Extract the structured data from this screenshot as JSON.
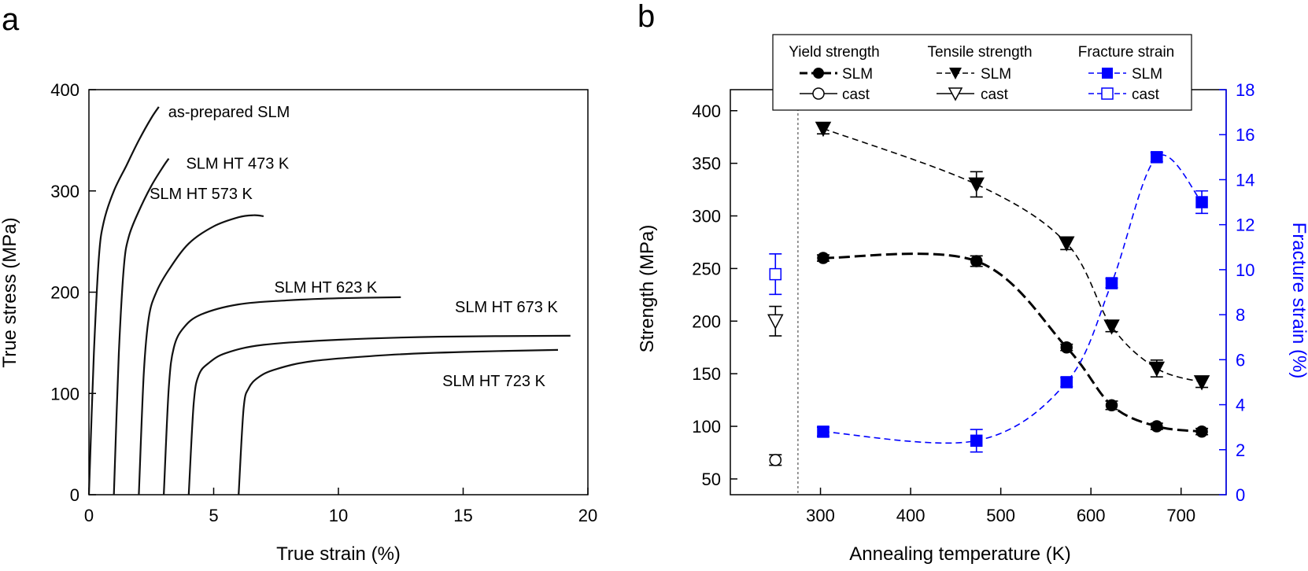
{
  "panel_a": {
    "label": "a",
    "xlabel": "True strain (%)",
    "ylabel": "True stress (MPa)",
    "xticks": [
      "0",
      "5",
      "10",
      "15",
      "20"
    ],
    "yticks": [
      "0",
      "100",
      "200",
      "300",
      "400"
    ]
  },
  "panel_b": {
    "label": "b",
    "xlabel": "Annealing temperature (K)",
    "ylabel_left": "Strength (MPa)",
    "ylabel_right": "Fracture strain (%)",
    "xticks": [
      "300",
      "400",
      "500",
      "600",
      "700"
    ],
    "yticks_left": [
      "50",
      "100",
      "150",
      "200",
      "250",
      "300",
      "350",
      "400"
    ],
    "yticks_right": [
      "0",
      "2",
      "4",
      "6",
      "8",
      "10",
      "12",
      "14",
      "16",
      "18"
    ],
    "legend": {
      "yield_header": "Yield strength",
      "tensile_header": "Tensile strength",
      "fracture_header": "Fracture strain",
      "slm": "SLM",
      "cast": "cast"
    }
  },
  "chart_data": [
    {
      "type": "line",
      "title": "",
      "xlabel": "True strain (%)",
      "ylabel": "True stress (MPa)",
      "xlim": [
        0,
        20
      ],
      "ylim": [
        0,
        400
      ],
      "grid": false,
      "series": [
        {
          "name": "as-prepared SLM",
          "x": [
            0.0,
            0.2,
            0.4,
            0.6,
            1.0,
            1.5,
            2.0,
            2.5,
            2.8
          ],
          "y": [
            0,
            140,
            235,
            270,
            300,
            325,
            350,
            372,
            383
          ]
        },
        {
          "name": "SLM HT 473 K",
          "x": [
            1.0,
            1.2,
            1.4,
            1.6,
            2.0,
            2.5,
            3.0,
            3.2
          ],
          "y": [
            0,
            140,
            225,
            255,
            280,
            305,
            325,
            332
          ]
        },
        {
          "name": "SLM HT 573 K",
          "x": [
            2.0,
            2.2,
            2.4,
            2.7,
            3.2,
            4.0,
            5.0,
            6.0,
            6.6,
            7.0
          ],
          "y": [
            0,
            120,
            175,
            200,
            222,
            248,
            265,
            274,
            276,
            275
          ]
        },
        {
          "name": "SLM HT 623 K",
          "x": [
            3.0,
            3.2,
            3.4,
            3.8,
            4.5,
            6.0,
            8.0,
            10.0,
            12.5
          ],
          "y": [
            0,
            105,
            145,
            165,
            178,
            188,
            192,
            194,
            195
          ]
        },
        {
          "name": "SLM HT 673 K",
          "x": [
            4.0,
            4.2,
            4.4,
            4.8,
            5.5,
            7.0,
            10.0,
            14.0,
            19.3
          ],
          "y": [
            0,
            90,
            118,
            130,
            140,
            148,
            153,
            156,
            157
          ]
        },
        {
          "name": "SLM HT 723 K",
          "x": [
            6.0,
            6.2,
            6.4,
            6.8,
            7.5,
            9.0,
            12.0,
            15.0,
            18.8
          ],
          "y": [
            0,
            85,
            105,
            116,
            124,
            132,
            138,
            141,
            143
          ]
        }
      ]
    },
    {
      "type": "scatter",
      "title": "",
      "xlabel": "Annealing temperature (K)",
      "ylabel": "Strength (MPa)",
      "y2label": "Fracture strain (%)",
      "xlim": [
        200,
        750
      ],
      "ylim": [
        35,
        420
      ],
      "y2lim": [
        0,
        18
      ],
      "cutoff_x": 275,
      "grid": false,
      "legend_position": "top",
      "series": [
        {
          "name": "SLM",
          "group": "Yield strength",
          "axis": "left",
          "x": [
            303,
            473,
            573,
            623,
            673,
            723
          ],
          "y": [
            260,
            257,
            175,
            120,
            100,
            95
          ],
          "err": [
            3,
            5,
            3,
            4,
            3,
            3
          ]
        },
        {
          "name": "cast",
          "group": "Yield strength",
          "axis": "left",
          "x": [
            250
          ],
          "y": [
            68
          ],
          "err": [
            5
          ]
        },
        {
          "name": "SLM",
          "group": "Tensile strength",
          "axis": "left",
          "x": [
            303,
            473,
            573,
            623,
            673,
            723
          ],
          "y": [
            383,
            330,
            274,
            195,
            155,
            142
          ],
          "err": [
            5,
            12,
            6,
            5,
            8,
            5
          ]
        },
        {
          "name": "cast",
          "group": "Tensile strength",
          "axis": "left",
          "x": [
            250
          ],
          "y": [
            200
          ],
          "err": [
            14
          ]
        },
        {
          "name": "SLM",
          "group": "Fracture strain",
          "axis": "right",
          "x": [
            303,
            473,
            573,
            623,
            673,
            723
          ],
          "y": [
            2.8,
            2.4,
            5.0,
            9.4,
            15.0,
            13.0
          ],
          "err": [
            0.2,
            0.5,
            0.2,
            0.2,
            0.2,
            0.5
          ]
        },
        {
          "name": "cast",
          "group": "Fracture strain",
          "axis": "right",
          "x": [
            250
          ],
          "y": [
            9.8
          ],
          "err": [
            0.9
          ]
        }
      ]
    }
  ]
}
